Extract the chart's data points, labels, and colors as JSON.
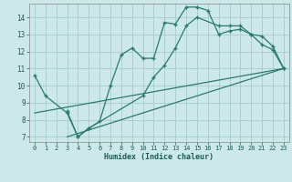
{
  "title": "",
  "xlabel": "Humidex (Indice chaleur)",
  "bg_color": "#cce8e8",
  "grid_color": "#aacfcf",
  "line_color": "#2a7a70",
  "xlim": [
    -0.5,
    23.5
  ],
  "ylim": [
    6.7,
    14.8
  ],
  "yticks": [
    7,
    8,
    9,
    10,
    11,
    12,
    13,
    14
  ],
  "xticks": [
    0,
    1,
    2,
    3,
    4,
    5,
    6,
    7,
    8,
    9,
    10,
    11,
    12,
    13,
    14,
    15,
    16,
    17,
    18,
    19,
    20,
    21,
    22,
    23
  ],
  "series1_x": [
    0,
    1,
    3,
    4,
    5,
    6,
    7,
    8,
    9,
    10,
    11,
    12,
    13,
    14,
    15,
    16,
    17,
    18,
    19,
    20,
    21,
    22,
    23
  ],
  "series1_y": [
    10.6,
    9.4,
    8.4,
    7.0,
    7.5,
    7.9,
    10.0,
    11.8,
    12.2,
    11.6,
    11.6,
    13.7,
    13.6,
    14.6,
    14.6,
    14.4,
    13.0,
    13.2,
    13.3,
    13.0,
    12.4,
    12.1,
    11.0
  ],
  "series2_x": [
    3,
    4,
    5,
    10,
    11,
    12,
    13,
    14,
    15,
    17,
    18,
    19,
    20,
    21,
    22,
    23
  ],
  "series2_y": [
    8.5,
    7.0,
    7.5,
    9.4,
    10.5,
    11.2,
    12.2,
    13.5,
    14.0,
    13.5,
    13.5,
    13.5,
    13.0,
    12.9,
    12.3,
    11.0
  ],
  "series3_x": [
    0,
    23
  ],
  "series3_y": [
    8.4,
    11.0
  ],
  "series4_x": [
    3,
    23
  ],
  "series4_y": [
    7.0,
    11.0
  ]
}
